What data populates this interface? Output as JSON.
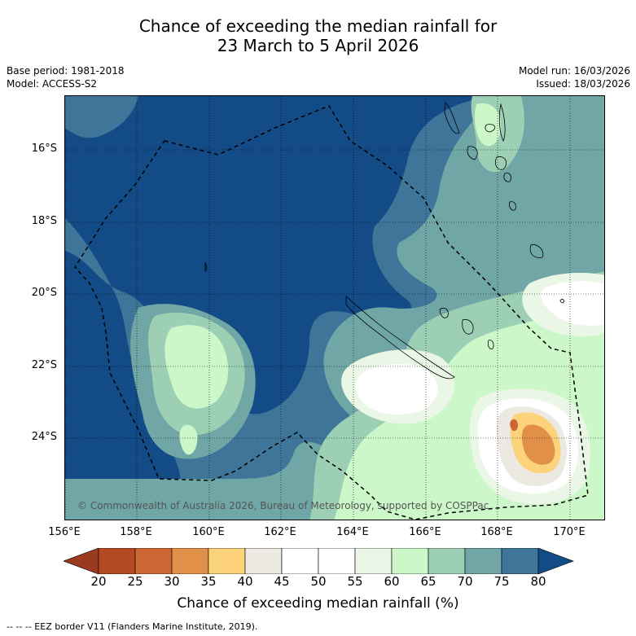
{
  "title": {
    "line1": "Chance of exceeding the median rainfall for",
    "line2": "23 March to 5 April 2026"
  },
  "meta": {
    "base_period": "Base period: 1981-2018",
    "model": "Model: ACCESS-S2",
    "model_run": "Model run: 16/03/2026",
    "issued": "Issued: 18/03/2026"
  },
  "map": {
    "lat_labels": [
      "16°S",
      "18°S",
      "20°S",
      "22°S",
      "24°S"
    ],
    "lon_labels": [
      "156°E",
      "158°E",
      "160°E",
      "162°E",
      "164°E",
      "166°E",
      "168°E",
      "170°E"
    ],
    "copyright": "© Commonwealth of Australia 2026, Bureau of Meteorology, supported by COSPPac"
  },
  "colorbar": {
    "ticks": [
      "20",
      "25",
      "30",
      "35",
      "40",
      "45",
      "50",
      "55",
      "60",
      "65",
      "70",
      "75",
      "80"
    ],
    "colors": [
      "#b34a24",
      "#cc6632",
      "#e09048",
      "#fcd27a",
      "#ece8e2",
      "#ffffff",
      "#ffffff",
      "#eaf6e6",
      "#ccf7c8",
      "#9ccfb4",
      "#70a6a6",
      "#3e7599"
    ],
    "low_color": "#9a3a1e",
    "high_color": "#134b86",
    "title": "Chance of exceeding median rainfall (%)"
  },
  "footnote": "--  --  -- EEZ border V11 (Flanders Marine Institute, 2019)."
}
